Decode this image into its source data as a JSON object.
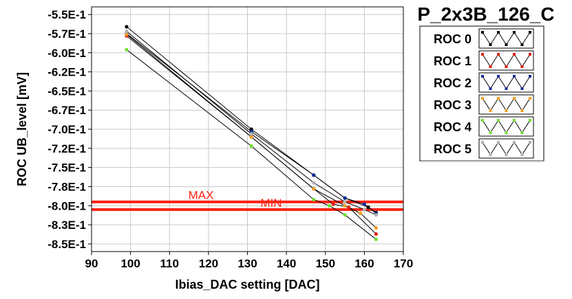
{
  "chart_data": {
    "type": "line",
    "title": "P_2x3B_126_C",
    "xlabel": "Ibias_DAC setting [DAC]",
    "ylabel": "ROC UB_level [mV]",
    "xlim": [
      90,
      170
    ],
    "ylim": [
      -86,
      -54
    ],
    "x_ticks": [
      90,
      100,
      110,
      120,
      130,
      140,
      150,
      160,
      170
    ],
    "x_tick_labels": [
      "90",
      "100",
      "110",
      "120",
      "130",
      "140",
      "150",
      "160",
      "170"
    ],
    "y_ticks": [
      -55,
      -57.5,
      -60,
      -62.5,
      -65,
      -67.5,
      -70,
      -72.5,
      -75,
      -77.5,
      -80,
      -82.5,
      -85
    ],
    "y_tick_labels": [
      "-5.5E-1",
      "-5.7E-1",
      "-6.0E-1",
      "-6.2E-1",
      "-6.5E-1",
      "-6.7E-1",
      "-7.0E-1",
      "-7.2E-1",
      "-7.5E-1",
      "-7.8E-1",
      "-8.0E-1",
      "-8.3E-1",
      "-8.5E-1"
    ],
    "grid": true,
    "legend_position": "right",
    "series": [
      {
        "name": "ROC 0",
        "color": "#000000",
        "x": [
          99,
          131,
          147,
          155,
          161,
          163
        ],
        "y": [
          -56.6,
          -70.0,
          -76.0,
          -79.0,
          -80.2,
          -80.9
        ]
      },
      {
        "name": "ROC 1",
        "color": "#e02010",
        "x": [
          99,
          131,
          147,
          152,
          156,
          163
        ],
        "y": [
          -57.8,
          -71.0,
          -77.8,
          -79.8,
          -80.2,
          -83.7
        ]
      },
      {
        "name": "ROC 2",
        "color": "#10309a",
        "x": [
          99,
          131,
          147,
          155,
          160,
          163
        ],
        "y": [
          -57.5,
          -70.3,
          -76.0,
          -79.0,
          -79.8,
          -81.0
        ]
      },
      {
        "name": "ROC 3",
        "color": "#f0a020",
        "x": [
          99,
          131,
          147,
          155,
          159,
          163
        ],
        "y": [
          -57.6,
          -71.0,
          -77.8,
          -80.0,
          -81.0,
          -82.9
        ]
      },
      {
        "name": "ROC 4",
        "color": "#70e030",
        "x": [
          99,
          131,
          147,
          151,
          155,
          163
        ],
        "y": [
          -59.6,
          -72.2,
          -79.2,
          -80.0,
          -81.2,
          -84.4
        ]
      },
      {
        "name": "ROC 5",
        "color": "#b0b0b0",
        "x": [
          99,
          131,
          147,
          155,
          160,
          163
        ],
        "y": [
          -57.2,
          -70.6,
          -77.0,
          -79.5,
          -80.5,
          -81.2
        ]
      }
    ],
    "reference_lines": [
      {
        "label": "MAX",
        "y": -79.5,
        "color": "#ff2010"
      },
      {
        "label": "MIN",
        "y": -80.5,
        "color": "#ff2010"
      }
    ]
  }
}
